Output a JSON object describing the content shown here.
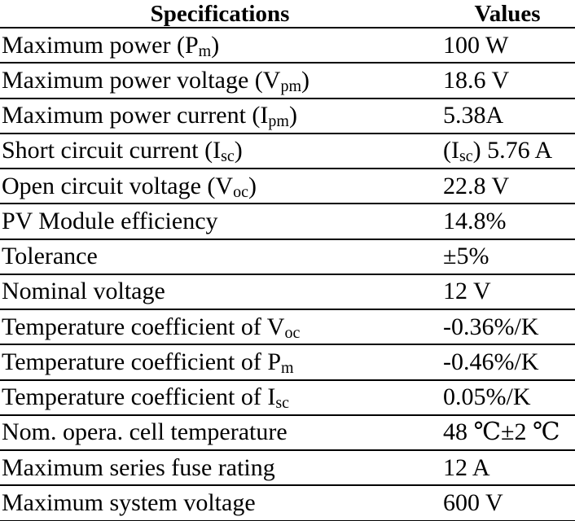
{
  "table": {
    "headers": [
      "Specifications",
      "Values"
    ],
    "rows": [
      {
        "spec": "Maximum power (",
        "spec_sub": "m",
        "spec_sym": "P",
        "spec_end": ")",
        "value": "100 W"
      },
      {
        "spec": "Maximum power voltage (",
        "spec_sym": "V",
        "spec_sub": "pm",
        "spec_end": ")",
        "value": "18.6 V"
      },
      {
        "spec": "Maximum power current (",
        "spec_sym": "I",
        "spec_sub": "pm",
        "spec_end": ")",
        "value": "5.38A"
      },
      {
        "spec": "Short circuit current (",
        "spec_sym": "I",
        "spec_sub": "sc",
        "spec_end": ")",
        "value_pre": "(I",
        "value_sub": "sc",
        "value": ") 5.76 A"
      },
      {
        "spec": "Open circuit voltage (",
        "spec_sym": "V",
        "spec_sub": "oc",
        "spec_end": ")",
        "value": "22.8 V"
      },
      {
        "spec": "PV Module efficiency",
        "value": "14.8%"
      },
      {
        "spec": "Tolerance",
        "value": "±5%"
      },
      {
        "spec": "Nominal voltage",
        "value": "12 V"
      },
      {
        "spec": "Temperature coefficient of ",
        "spec_sym": "V",
        "spec_sub": "oc",
        "spec_end": "",
        "value": "-0.36%/K"
      },
      {
        "spec": "Temperature coefficient of ",
        "spec_sym": "P",
        "spec_sub": "m",
        "spec_end": "",
        "value": "-0.46%/K"
      },
      {
        "spec": "Temperature coefficient of ",
        "spec_sym": "I",
        "spec_sub": "sc",
        "spec_end": "",
        "value": "0.05%/K"
      },
      {
        "spec": "Nom. opera. cell temperature",
        "value": "48 ℃±2 ℃"
      },
      {
        "spec": "Maximum series fuse rating",
        "value": "12 A"
      },
      {
        "spec": "Maximum system voltage",
        "value": "600 V"
      }
    ]
  }
}
